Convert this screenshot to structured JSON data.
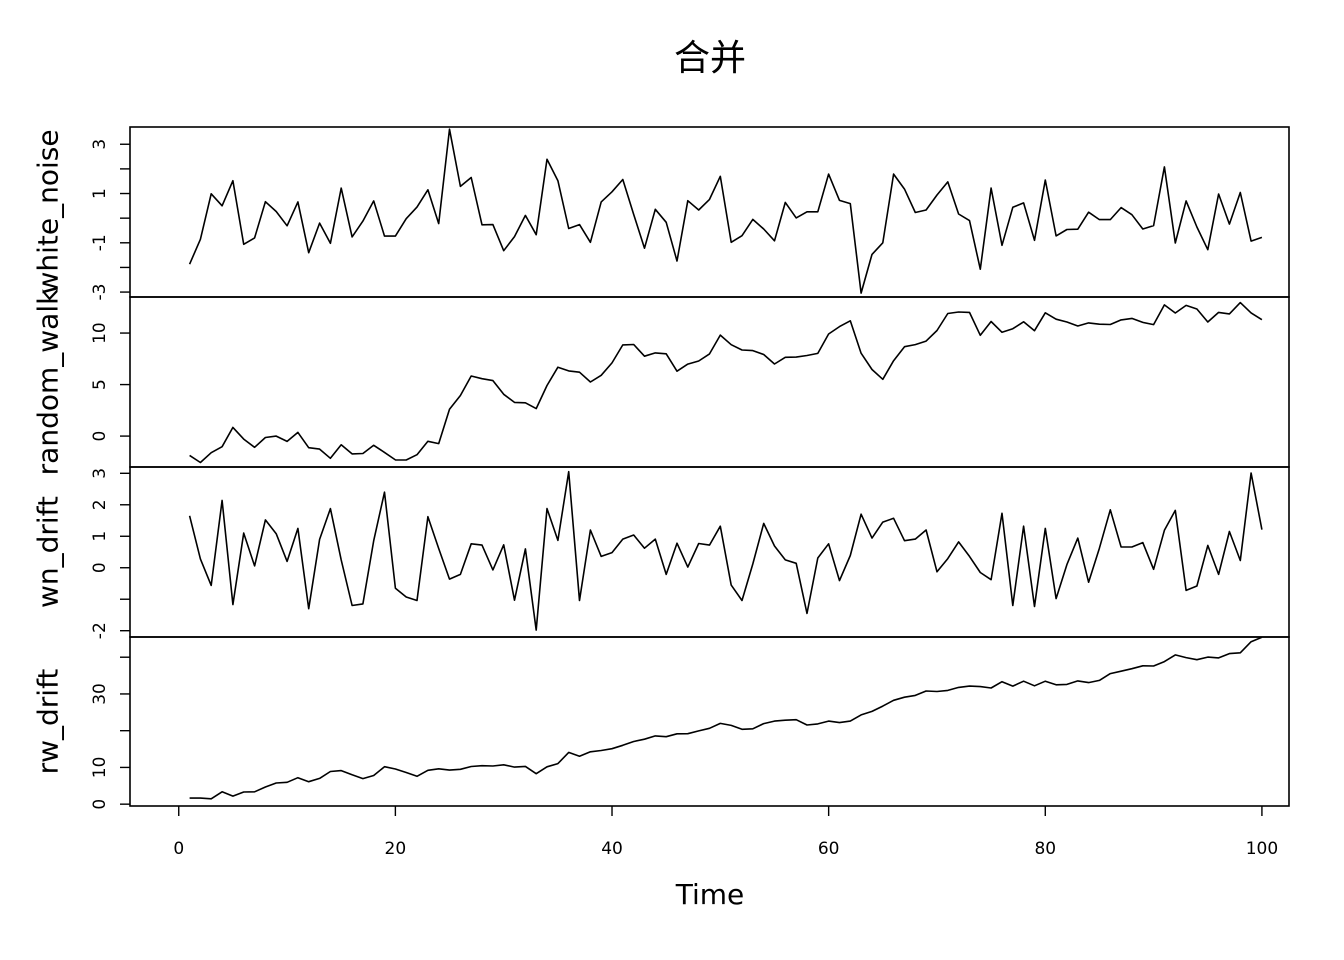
{
  "chart_data": {
    "type": "line",
    "title": "合并",
    "xlabel": "Time",
    "xlim": [
      1,
      100
    ],
    "x_ticks": [
      "0",
      "20",
      "40",
      "60",
      "80",
      "100"
    ],
    "x_tick_values": [
      0,
      20,
      40,
      60,
      80,
      100
    ],
    "grid": false,
    "layout": "stacked panels, shared x axis",
    "series": [
      {
        "name": "white_noise",
        "ylabel": "white_noise",
        "ylim": [
          -3.2,
          3.7
        ],
        "y_ticks": [
          "-3",
          "-1",
          "1",
          "3"
        ],
        "y_tick_values": [
          -3,
          -1,
          1,
          3
        ],
        "y_minor_ticks": [
          -2,
          0,
          2
        ],
        "values": [
          -1.87,
          -0.86,
          0.99,
          0.5,
          1.52,
          -1.06,
          -0.8,
          0.67,
          0.27,
          -0.31,
          0.66,
          -1.4,
          -0.2,
          -1.02,
          1.22,
          -0.76,
          -0.12,
          0.7,
          -0.73,
          -0.73,
          -0.02,
          0.45,
          1.15,
          -0.22,
          3.61,
          1.29,
          1.65,
          -0.27,
          -0.26,
          -1.32,
          -0.75,
          0.11,
          -0.67,
          2.39,
          1.52,
          -0.42,
          -0.26,
          -0.98,
          0.66,
          1.07,
          1.57,
          0.15,
          -1.22,
          0.36,
          -0.17,
          -1.74,
          0.71,
          0.33,
          0.76,
          1.7,
          -0.98,
          -0.71,
          -0.05,
          -0.44,
          -0.92,
          0.64,
          0.01,
          0.26,
          0.26,
          1.79,
          0.72,
          0.59,
          -3.04,
          -1.47,
          -1.0,
          1.79,
          1.18,
          0.23,
          0.33,
          0.94,
          1.47,
          0.17,
          -0.1,
          -2.07,
          1.22,
          -1.1,
          0.44,
          0.62,
          -0.9,
          1.55,
          -0.72,
          -0.46,
          -0.45,
          0.24,
          -0.06,
          -0.06,
          0.43,
          0.14,
          -0.44,
          -0.3,
          2.08,
          -1.01,
          0.7,
          -0.36,
          -1.28,
          0.98,
          -0.24,
          1.04,
          -0.93,
          -0.78
        ]
      },
      {
        "name": "random_walk",
        "ylabel": "random_walk",
        "ylim": [
          -3.0,
          13.5
        ],
        "y_ticks": [
          "0",
          "5",
          "10"
        ],
        "y_tick_values": [
          0,
          5,
          10
        ],
        "values": [
          -1.87,
          -2.56,
          -1.61,
          -1.03,
          0.84,
          -0.29,
          -1.09,
          -0.14,
          0.0,
          -0.52,
          0.36,
          -1.13,
          -1.26,
          -2.16,
          -0.85,
          -1.73,
          -1.69,
          -0.89,
          -1.58,
          -2.31,
          -2.32,
          -1.81,
          -0.51,
          -0.73,
          2.6,
          3.94,
          5.83,
          5.57,
          5.39,
          4.06,
          3.27,
          3.23,
          2.67,
          4.91,
          6.69,
          6.33,
          6.2,
          5.25,
          5.9,
          7.1,
          8.85,
          8.89,
          7.75,
          8.07,
          7.99,
          6.3,
          6.99,
          7.29,
          7.98,
          9.8,
          8.87,
          8.36,
          8.3,
          7.92,
          7.0,
          7.65,
          7.67,
          7.82,
          8.03,
          9.91,
          10.63,
          11.19,
          8.05,
          6.46,
          5.51,
          7.32,
          8.68,
          8.88,
          9.22,
          10.25,
          11.9,
          12.04,
          12.01,
          9.78,
          11.12,
          10.07,
          10.42,
          11.09,
          10.23,
          11.97,
          11.35,
          11.07,
          10.69,
          10.99,
          10.86,
          10.83,
          11.28,
          11.42,
          11.03,
          10.82,
          12.73,
          11.95,
          12.68,
          12.34,
          11.07,
          12.01,
          11.86,
          12.96,
          11.96,
          11.3
        ]
      },
      {
        "name": "wn_drift",
        "ylabel": "wn_drift",
        "ylim": [
          -2.2,
          3.2
        ],
        "y_ticks": [
          "-2",
          "0",
          "1",
          "2",
          "3"
        ],
        "y_tick_values": [
          -2,
          0,
          1,
          2,
          3
        ],
        "y_minor_ticks": [
          -1
        ],
        "values": [
          1.65,
          0.28,
          -0.56,
          2.14,
          -1.17,
          1.1,
          0.06,
          1.52,
          1.08,
          0.2,
          1.25,
          -1.3,
          0.9,
          1.88,
          0.25,
          -1.2,
          -1.15,
          0.86,
          2.4,
          -0.65,
          -0.93,
          -1.04,
          1.62,
          0.61,
          -0.36,
          -0.21,
          0.76,
          0.72,
          -0.07,
          0.73,
          -1.03,
          0.6,
          -1.98,
          1.88,
          0.87,
          3.05,
          -1.04,
          1.2,
          0.36,
          0.48,
          0.91,
          1.04,
          0.62,
          0.91,
          -0.21,
          0.78,
          0.02,
          0.77,
          0.72,
          1.32,
          -0.55,
          -1.04,
          0.12,
          1.41,
          0.69,
          0.25,
          0.14,
          -1.45,
          0.31,
          0.76,
          -0.41,
          0.39,
          1.7,
          0.94,
          1.45,
          1.57,
          0.86,
          0.91,
          1.2,
          -0.13,
          0.29,
          0.82,
          0.36,
          -0.15,
          -0.38,
          1.73,
          -1.2,
          1.32,
          -1.23,
          1.25,
          -0.98,
          0.1,
          0.94,
          -0.46,
          0.62,
          1.84,
          0.66,
          0.66,
          0.8,
          -0.05,
          1.19,
          1.82,
          -0.72,
          -0.58,
          0.71,
          -0.21,
          1.15,
          0.23,
          3.01,
          1.21
        ]
      },
      {
        "name": "rw_drift",
        "ylabel": "rw_drift",
        "ylim": [
          -0.5,
          45.5
        ],
        "y_ticks": [
          "0",
          "10",
          "30"
        ],
        "y_tick_values": [
          0,
          10,
          30
        ],
        "y_minor_ticks": [
          20,
          40
        ],
        "values": [
          1.65,
          1.65,
          1.45,
          3.36,
          2.2,
          3.3,
          3.36,
          4.68,
          5.76,
          5.96,
          7.21,
          6.11,
          7.01,
          8.89,
          9.14,
          8.0,
          6.95,
          7.81,
          10.21,
          9.56,
          8.63,
          7.59,
          9.21,
          9.62,
          9.26,
          9.5,
          10.26,
          10.46,
          10.39,
          10.71,
          10.08,
          10.28,
          8.3,
          10.18,
          11.05,
          14.1,
          13.06,
          14.26,
          14.62,
          15.1,
          16.01,
          17.05,
          17.67,
          18.58,
          18.37,
          19.15,
          19.17,
          19.94,
          20.66,
          21.98,
          21.43,
          20.39,
          20.51,
          21.92,
          22.61,
          22.86,
          23.0,
          21.55,
          21.86,
          22.62,
          22.21,
          22.6,
          24.3,
          25.24,
          26.69,
          28.26,
          29.12,
          29.6,
          30.8,
          30.67,
          30.96,
          31.78,
          32.14,
          31.99,
          31.61,
          33.34,
          32.14,
          33.46,
          32.23,
          33.48,
          32.5,
          32.6,
          33.54,
          33.08,
          33.7,
          35.54,
          36.2,
          36.86,
          37.66,
          37.61,
          38.8,
          40.62,
          39.9,
          39.32,
          40.03,
          39.82,
          40.97,
          41.2,
          44.21,
          45.42
        ]
      }
    ]
  }
}
